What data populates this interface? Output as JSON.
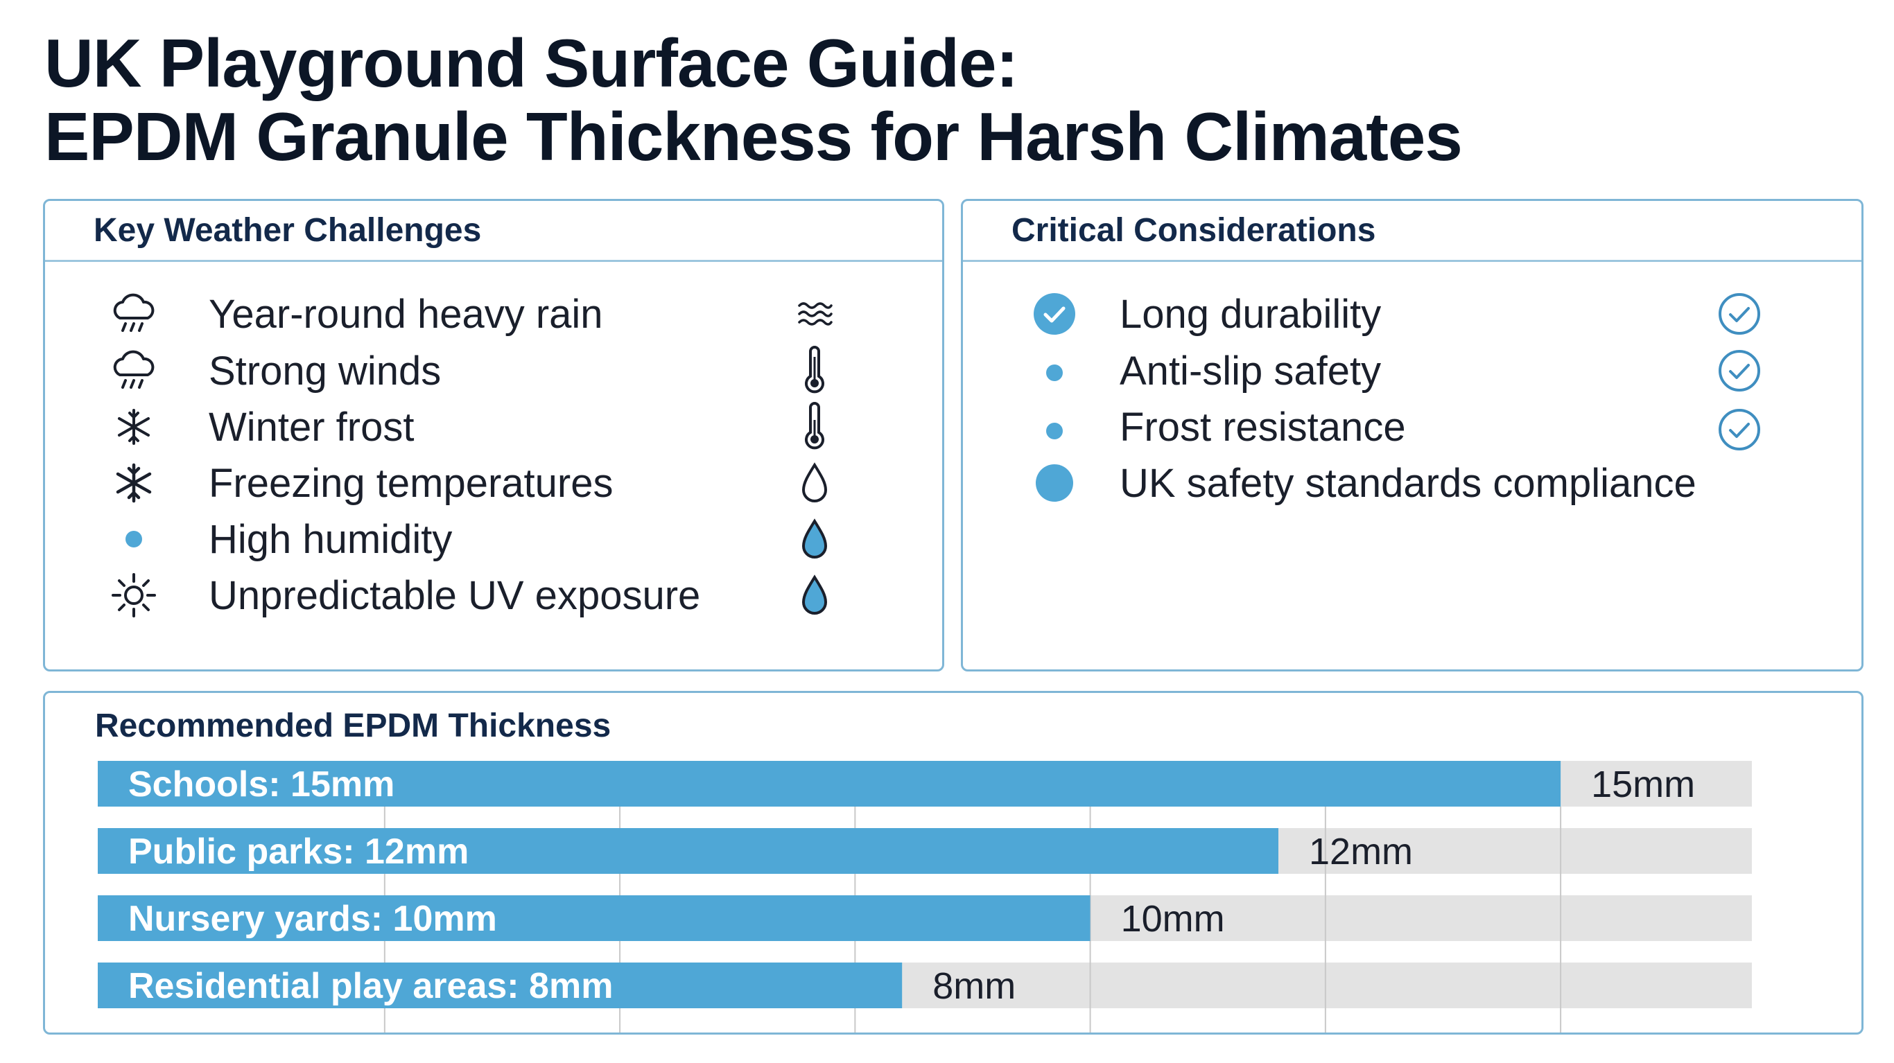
{
  "title": {
    "line1": "UK Playground Surface Guide:",
    "line2": "EPDM Granule Thickness for Harsh Climates"
  },
  "colors": {
    "accent": "#4fa7d6",
    "panel_border": "#7fb6d6",
    "track": "#e3e3e3",
    "gridline": "#c9c9c9",
    "check": "#3f8ec0"
  },
  "weather": {
    "heading": "Key Weather Challenges",
    "items": [
      {
        "label": "Year-round heavy rain",
        "icon": "rain-cloud-icon",
        "side_icon": "wind-waves-icon"
      },
      {
        "label": "Strong winds",
        "icon": "rain-cloud-icon",
        "side_icon": "thermometer-icon"
      },
      {
        "label": "Winter frost",
        "icon": "snowflake-icon",
        "side_icon": "thermometer-icon"
      },
      {
        "label": "Freezing temperatures",
        "icon": "snowflake-icon",
        "side_icon": "droplet-outline-icon"
      },
      {
        "label": "High humidity",
        "icon": "dot-icon",
        "side_icon": "droplet-filled-icon"
      },
      {
        "label": "Unpredictable UV exposure",
        "icon": "sun-icon",
        "side_icon": "droplet-filled-icon"
      }
    ]
  },
  "considerations": {
    "heading": "Critical Considerations",
    "items": [
      {
        "label": "Long durability",
        "icon": "check-circle-filled-icon",
        "checked": true
      },
      {
        "label": "Anti-slip safety",
        "icon": "dot-icon",
        "checked": true
      },
      {
        "label": "Frost resistance",
        "icon": "dot-icon",
        "checked": true
      },
      {
        "label": "UK safety standards compliance",
        "icon": "large-dot-icon",
        "checked": false
      }
    ]
  },
  "chart_data": {
    "type": "bar",
    "orientation": "horizontal",
    "title": "Recommended EPDM Thickness",
    "categories": [
      "Schools",
      "Public parks",
      "Nursery yards",
      "Residential play areas"
    ],
    "bar_labels": [
      "Schools: 15mm",
      "Public parks: 12mm",
      "Nursery yards: 10mm",
      "Residential play areas: 8mm"
    ],
    "values": [
      15,
      12,
      10,
      8
    ],
    "value_labels": [
      "15mm",
      "12mm",
      "10mm",
      "8mm"
    ],
    "unit": "mm",
    "xlim": [
      0,
      16
    ],
    "grid": true
  }
}
